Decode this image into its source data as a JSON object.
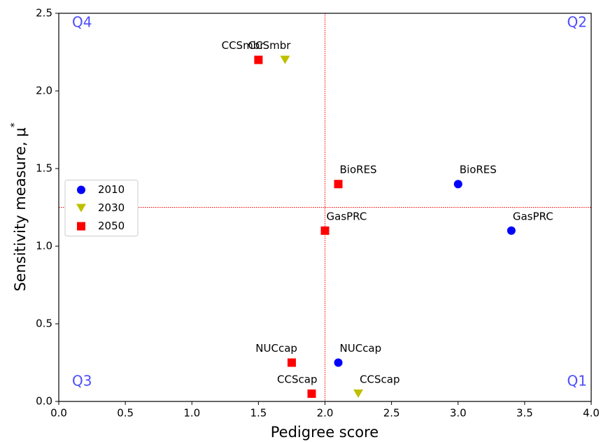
{
  "chart_data": {
    "type": "scatter",
    "x_label": "Pedigree score",
    "y_label": "Sensitivity measure, μ",
    "y_label_superscript": "*",
    "xlim": [
      0,
      4
    ],
    "ylim": [
      0,
      2.5
    ],
    "xticks": [
      {
        "value": 0,
        "label": "0.0"
      },
      {
        "value": 0.5,
        "label": "0.5"
      },
      {
        "value": 1,
        "label": "1.0"
      },
      {
        "value": 1.5,
        "label": "1.5"
      },
      {
        "value": 2,
        "label": "2.0"
      },
      {
        "value": 2.5,
        "label": "2.5"
      },
      {
        "value": 3,
        "label": "3.0"
      },
      {
        "value": 3.5,
        "label": "3.5"
      },
      {
        "value": 4,
        "label": "4.0"
      }
    ],
    "yticks": [
      {
        "value": 0,
        "label": "0.0"
      },
      {
        "value": 0.5,
        "label": "0.5"
      },
      {
        "value": 1,
        "label": "1.0"
      },
      {
        "value": 1.5,
        "label": "1.5"
      },
      {
        "value": 2,
        "label": "2.0"
      },
      {
        "value": 2.5,
        "label": "2.5"
      }
    ],
    "legend": "center left",
    "reference_lines": {
      "x": 2,
      "y": 1.25,
      "color": "#ff0000"
    },
    "quadrant_labels": [
      {
        "text": "Q1",
        "corner": "lower right"
      },
      {
        "text": "Q2",
        "corner": "upper right"
      },
      {
        "text": "Q3",
        "corner": "lower left"
      },
      {
        "text": "Q4",
        "corner": "upper left"
      }
    ],
    "series": [
      {
        "name": "2010",
        "color": "#0000ff",
        "marker": "circle",
        "x": [
          3.0,
          3.4,
          2.1
        ],
        "values": [
          1.4,
          1.1,
          0.25
        ],
        "labels": [
          "BioRES",
          "GasPRC",
          "NUCcap"
        ]
      },
      {
        "name": "2030",
        "color": "#bfbf00",
        "marker": "triangle-down",
        "x": [
          1.7,
          2.25
        ],
        "values": [
          2.2,
          0.05
        ],
        "labels": [
          "CCSmbr",
          "CCScap"
        ]
      },
      {
        "name": "2050",
        "color": "#ff0000",
        "marker": "square",
        "x": [
          1.5,
          2.1,
          2.0,
          1.75,
          1.9
        ],
        "values": [
          2.2,
          1.4,
          1.1,
          0.25,
          0.05
        ],
        "labels": [
          "CCSmbr",
          "BioRES",
          "GasPRC",
          "NUCcap",
          "CCScap"
        ]
      }
    ]
  }
}
